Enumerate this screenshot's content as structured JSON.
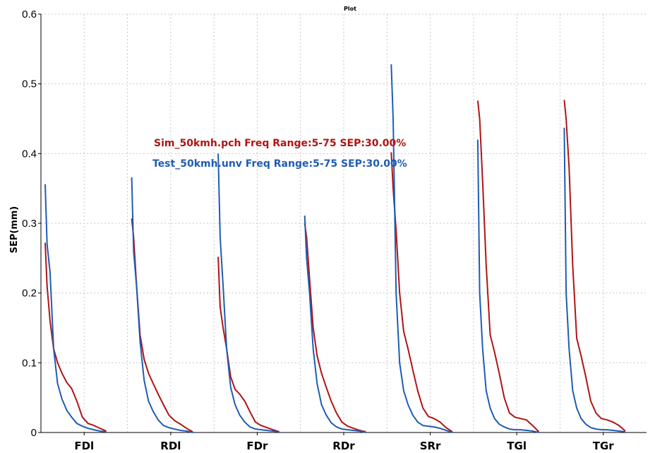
{
  "chart_data": {
    "type": "line",
    "title": "Plot",
    "ylabel": "SEP(mm)",
    "xlabel": "",
    "ylim": [
      0,
      0.6
    ],
    "yticks": [
      "0",
      "0.1",
      "0.2",
      "0.3",
      "0.4",
      "0.5",
      "0.6"
    ],
    "categories": [
      "FDl",
      "RDl",
      "FDr",
      "RDr",
      "SRr",
      "TGl",
      "TGr"
    ],
    "grid": true,
    "legend_placement": "upper-left-center",
    "series": [
      {
        "name": "Sim_50kmh.pch Freq Range:5-75 SEP:30.00%",
        "color": "#b01414",
        "segments": [
          [
            0.272,
            0.21,
            0.16,
            0.12,
            0.1,
            0.085,
            0.072,
            0.063,
            0.045,
            0.022,
            0.013,
            0.01,
            0.006,
            0.002
          ],
          [
            0.307,
            0.28,
            0.21,
            0.14,
            0.105,
            0.085,
            0.07,
            0.055,
            0.04,
            0.025,
            0.017,
            0.012,
            0.006,
            0.001
          ],
          [
            0.252,
            0.18,
            0.15,
            0.12,
            0.08,
            0.062,
            0.055,
            0.045,
            0.03,
            0.015,
            0.01,
            0.007,
            0.004,
            0.001
          ],
          [
            0.3,
            0.28,
            0.22,
            0.15,
            0.11,
            0.085,
            0.065,
            0.045,
            0.028,
            0.015,
            0.009,
            0.006,
            0.003,
            0.001
          ],
          [
            0.402,
            0.35,
            0.29,
            0.2,
            0.145,
            0.12,
            0.09,
            0.06,
            0.035,
            0.023,
            0.02,
            0.015,
            0.007,
            0.001
          ],
          [
            0.476,
            0.45,
            0.36,
            0.24,
            0.14,
            0.115,
            0.085,
            0.05,
            0.028,
            0.022,
            0.02,
            0.018,
            0.01,
            0.001
          ],
          [
            0.477,
            0.45,
            0.38,
            0.24,
            0.135,
            0.11,
            0.08,
            0.045,
            0.028,
            0.02,
            0.018,
            0.015,
            0.01,
            0.002
          ]
        ]
      },
      {
        "name": "Test_50kmh.unv Freq Range:5-75 SEP:30.00%",
        "color": "#1f5cb4",
        "segments": [
          [
            0.356,
            0.27,
            0.23,
            0.12,
            0.07,
            0.048,
            0.032,
            0.022,
            0.013,
            0.009,
            0.006,
            0.004,
            0.002,
            0.001
          ],
          [
            0.366,
            0.26,
            0.21,
            0.13,
            0.075,
            0.045,
            0.03,
            0.018,
            0.01,
            0.007,
            0.005,
            0.003,
            0.002,
            0.0
          ],
          [
            0.4,
            0.28,
            0.21,
            0.12,
            0.065,
            0.04,
            0.025,
            0.015,
            0.008,
            0.005,
            0.004,
            0.003,
            0.002,
            0.001
          ],
          [
            0.311,
            0.25,
            0.2,
            0.12,
            0.07,
            0.04,
            0.025,
            0.014,
            0.008,
            0.005,
            0.004,
            0.003,
            0.002,
            0.0
          ],
          [
            0.528,
            0.45,
            0.2,
            0.1,
            0.06,
            0.04,
            0.025,
            0.015,
            0.01,
            0.009,
            0.008,
            0.006,
            0.003,
            0.0
          ],
          [
            0.42,
            0.2,
            0.12,
            0.06,
            0.035,
            0.02,
            0.012,
            0.008,
            0.005,
            0.004,
            0.004,
            0.003,
            0.002,
            0.0
          ],
          [
            0.437,
            0.2,
            0.12,
            0.06,
            0.035,
            0.02,
            0.012,
            0.007,
            0.005,
            0.004,
            0.004,
            0.003,
            0.002,
            0.001
          ]
        ]
      }
    ]
  }
}
